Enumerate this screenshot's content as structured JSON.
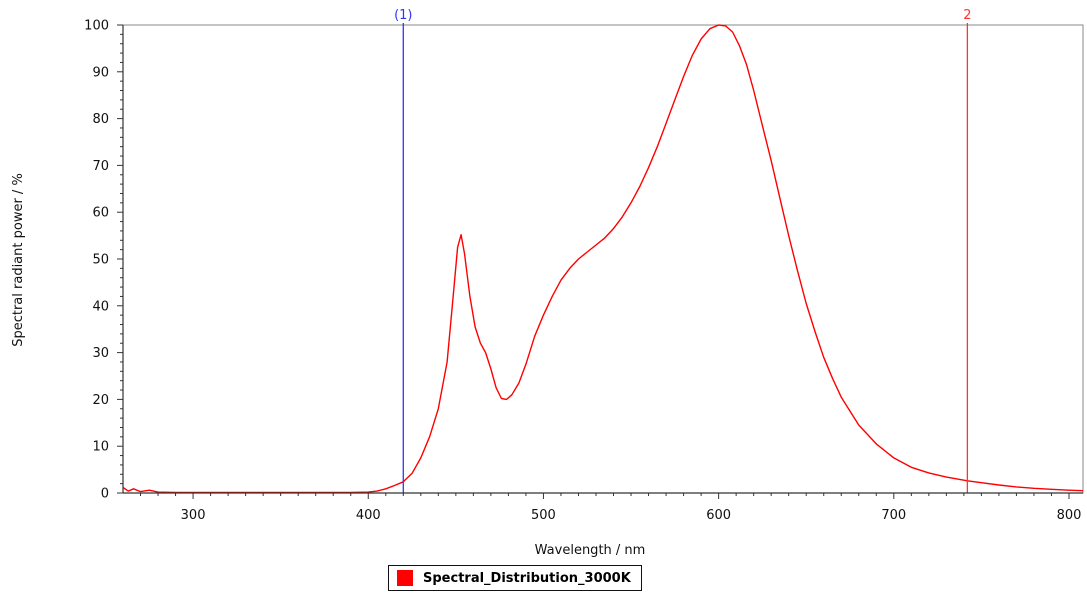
{
  "chart_data": {
    "type": "line",
    "title": "",
    "xlabel": "Wavelength / nm",
    "ylabel": "Spectral radiant power / %",
    "xlim": [
      260,
      808
    ],
    "ylim": [
      0,
      100
    ],
    "x_ticks": [
      300,
      400,
      500,
      600,
      700,
      800
    ],
    "y_ticks": [
      0,
      10,
      20,
      30,
      40,
      50,
      60,
      70,
      80,
      90,
      100
    ],
    "x_tick_labels": [
      "300",
      "400",
      "500",
      "600",
      "700",
      "800"
    ],
    "y_tick_labels": [
      "0",
      "10",
      "20",
      "30",
      "40",
      "50",
      "60",
      "70",
      "80",
      "90",
      "100"
    ],
    "grid": true,
    "legend_position": "bottom-center",
    "series": [
      {
        "name": "Spectral_Distribution_3000K",
        "color": "#ff0000",
        "x": [
          260,
          263,
          266,
          270,
          275,
          280,
          290,
          300,
          330,
          360,
          390,
          400,
          405,
          410,
          415,
          420,
          425,
          430,
          435,
          440,
          445,
          448,
          451,
          453,
          455,
          458,
          461,
          464,
          467,
          470,
          473,
          476,
          479,
          482,
          486,
          490,
          495,
          500,
          505,
          510,
          515,
          520,
          525,
          530,
          535,
          540,
          545,
          550,
          555,
          560,
          565,
          570,
          575,
          580,
          585,
          590,
          595,
          600,
          604,
          608,
          612,
          616,
          620,
          625,
          630,
          635,
          640,
          645,
          650,
          655,
          660,
          665,
          670,
          675,
          680,
          690,
          700,
          710,
          720,
          730,
          742,
          750,
          760,
          770,
          780,
          790,
          800,
          808
        ],
        "y": [
          1.2,
          0.4,
          0.9,
          0.3,
          0.6,
          0.2,
          0.1,
          0.1,
          0.1,
          0.1,
          0.1,
          0.2,
          0.4,
          0.9,
          1.6,
          2.4,
          4.2,
          7.5,
          12.0,
          18.0,
          28.0,
          40.0,
          52.5,
          55.2,
          51.0,
          42.0,
          35.5,
          32.0,
          30.0,
          26.5,
          22.5,
          20.2,
          20.0,
          21.0,
          23.5,
          27.5,
          33.5,
          38.0,
          42.0,
          45.5,
          48.0,
          50.0,
          51.5,
          53.0,
          54.5,
          56.5,
          59.0,
          62.0,
          65.5,
          69.5,
          74.0,
          79.0,
          84.0,
          89.0,
          93.5,
          97.0,
          99.2,
          100,
          99.8,
          98.5,
          95.5,
          91.5,
          86.0,
          78.5,
          71.0,
          63.0,
          55.0,
          47.5,
          40.5,
          34.5,
          29.0,
          24.5,
          20.5,
          17.5,
          14.5,
          10.5,
          7.5,
          5.5,
          4.3,
          3.4,
          2.6,
          2.2,
          1.7,
          1.3,
          1.0,
          0.8,
          0.6,
          0.5
        ]
      }
    ],
    "markers": [
      {
        "label": "(1)",
        "x": 420,
        "color": "#3333ff"
      },
      {
        "label": "2",
        "x": 742,
        "color": "#ff3333"
      }
    ]
  },
  "legend": {
    "items": [
      {
        "label": "Spectral_Distribution_3000K",
        "color": "#ff0000"
      }
    ]
  }
}
